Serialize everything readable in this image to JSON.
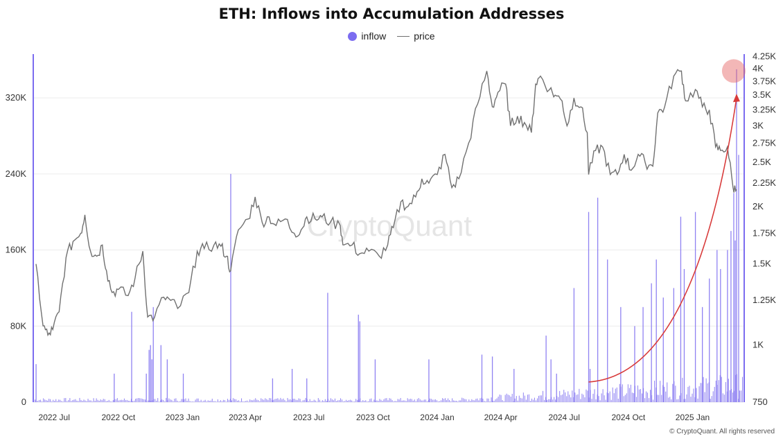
{
  "chart_data": {
    "type": "bar+line",
    "title": "ETH: Inflows into Accumulation Addresses",
    "legend": [
      {
        "name": "inflow",
        "marker": "dot",
        "color": "#7b6cf0"
      },
      {
        "name": "price",
        "marker": "line",
        "color": "#707070"
      }
    ],
    "legend_position": "top-center",
    "watermark": "CryptoQuant",
    "copyright": "© CryptoQuant. All rights reserved",
    "x_axis": {
      "ticks": [
        "2022 Jul",
        "2022 Oct",
        "2023 Jan",
        "2023 Apr",
        "2023 Jul",
        "2023 Oct",
        "2024 Jan",
        "2024 Apr",
        "2024 Jul",
        "2024 Oct",
        "2025 Jan"
      ],
      "range": [
        "2022-06-01",
        "2025-03-15"
      ]
    },
    "y_left": {
      "label": "inflow",
      "ticks": [
        "0",
        "80K",
        "160K",
        "240K",
        "320K"
      ],
      "min": 0,
      "max": 366000
    },
    "y_right": {
      "label": "price",
      "scale": "log",
      "ticks": [
        "750",
        "1K",
        "1.25K",
        "1.5K",
        "1.75K",
        "2K",
        "2.25K",
        "2.5K",
        "2.75K",
        "3K",
        "3.25K",
        "3.5K",
        "3.75K",
        "4K",
        "4.25K"
      ],
      "min": 750,
      "max": 4300
    },
    "grid": "horizontal",
    "series": [
      {
        "name": "price",
        "type": "line",
        "color": "#707070",
        "points": [
          [
            "2022-06-05",
            1500
          ],
          [
            "2022-06-15",
            1100
          ],
          [
            "2022-06-22",
            1050
          ],
          [
            "2022-06-29",
            1080
          ],
          [
            "2022-07-08",
            1180
          ],
          [
            "2022-07-18",
            1550
          ],
          [
            "2022-07-28",
            1680
          ],
          [
            "2022-08-08",
            1750
          ],
          [
            "2022-08-14",
            1920
          ],
          [
            "2022-08-22",
            1600
          ],
          [
            "2022-08-31",
            1560
          ],
          [
            "2022-09-08",
            1650
          ],
          [
            "2022-09-14",
            1450
          ],
          [
            "2022-09-22",
            1300
          ],
          [
            "2022-10-01",
            1320
          ],
          [
            "2022-10-15",
            1280
          ],
          [
            "2022-10-25",
            1400
          ],
          [
            "2022-11-05",
            1600
          ],
          [
            "2022-11-12",
            1150
          ],
          [
            "2022-11-22",
            1150
          ],
          [
            "2022-12-05",
            1270
          ],
          [
            "2022-12-15",
            1250
          ],
          [
            "2022-12-25",
            1200
          ],
          [
            "2023-01-10",
            1300
          ],
          [
            "2023-01-22",
            1600
          ],
          [
            "2023-02-01",
            1620
          ],
          [
            "2023-02-15",
            1650
          ],
          [
            "2023-02-25",
            1640
          ],
          [
            "2023-03-05",
            1560
          ],
          [
            "2023-03-11",
            1450
          ],
          [
            "2023-03-22",
            1780
          ],
          [
            "2023-04-05",
            1880
          ],
          [
            "2023-04-15",
            2100
          ],
          [
            "2023-04-25",
            1850
          ],
          [
            "2023-05-05",
            1900
          ],
          [
            "2023-05-15",
            1820
          ],
          [
            "2023-05-28",
            1880
          ],
          [
            "2023-06-10",
            1750
          ],
          [
            "2023-06-20",
            1780
          ],
          [
            "2023-06-28",
            1900
          ],
          [
            "2023-07-10",
            1880
          ],
          [
            "2023-07-20",
            1900
          ],
          [
            "2023-08-01",
            1850
          ],
          [
            "2023-08-15",
            1820
          ],
          [
            "2023-08-20",
            1650
          ],
          [
            "2023-09-01",
            1650
          ],
          [
            "2023-09-12",
            1580
          ],
          [
            "2023-09-25",
            1600
          ],
          [
            "2023-10-10",
            1560
          ],
          [
            "2023-10-22",
            1650
          ],
          [
            "2023-10-30",
            1800
          ],
          [
            "2023-11-10",
            2050
          ],
          [
            "2023-11-20",
            2000
          ],
          [
            "2023-12-01",
            2100
          ],
          [
            "2023-12-10",
            2300
          ],
          [
            "2023-12-20",
            2250
          ],
          [
            "2024-01-01",
            2350
          ],
          [
            "2024-01-12",
            2600
          ],
          [
            "2024-01-22",
            2200
          ],
          [
            "2024-02-01",
            2300
          ],
          [
            "2024-02-15",
            2750
          ],
          [
            "2024-02-28",
            3350
          ],
          [
            "2024-03-12",
            3950
          ],
          [
            "2024-03-20",
            3300
          ],
          [
            "2024-03-28",
            3550
          ],
          [
            "2024-04-08",
            3700
          ],
          [
            "2024-04-15",
            3000
          ],
          [
            "2024-04-25",
            3150
          ],
          [
            "2024-05-05",
            3050
          ],
          [
            "2024-05-15",
            2900
          ],
          [
            "2024-05-21",
            3700
          ],
          [
            "2024-05-28",
            3850
          ],
          [
            "2024-06-10",
            3600
          ],
          [
            "2024-06-18",
            3500
          ],
          [
            "2024-06-28",
            3400
          ],
          [
            "2024-07-05",
            3000
          ],
          [
            "2024-07-15",
            3450
          ],
          [
            "2024-07-25",
            3300
          ],
          [
            "2024-08-03",
            2900
          ],
          [
            "2024-08-05",
            2350
          ],
          [
            "2024-08-15",
            2650
          ],
          [
            "2024-08-25",
            2700
          ],
          [
            "2024-09-05",
            2350
          ],
          [
            "2024-09-15",
            2350
          ],
          [
            "2024-09-25",
            2600
          ],
          [
            "2024-10-05",
            2400
          ],
          [
            "2024-10-15",
            2600
          ],
          [
            "2024-10-25",
            2500
          ],
          [
            "2024-11-05",
            2450
          ],
          [
            "2024-11-12",
            3200
          ],
          [
            "2024-11-22",
            3300
          ],
          [
            "2024-12-05",
            3850
          ],
          [
            "2024-12-16",
            3950
          ],
          [
            "2024-12-22",
            3400
          ],
          [
            "2025-01-05",
            3600
          ],
          [
            "2025-01-15",
            3300
          ],
          [
            "2025-01-25",
            3250
          ],
          [
            "2025-02-03",
            2700
          ],
          [
            "2025-02-10",
            2650
          ],
          [
            "2025-02-20",
            2700
          ],
          [
            "2025-02-28",
            2200
          ],
          [
            "2025-03-05",
            2180
          ]
        ]
      },
      {
        "name": "inflow",
        "type": "bar",
        "color": "#7b6cf0",
        "baseline_level": 2500,
        "spikes": [
          [
            "2022-06-01",
            360000
          ],
          [
            "2022-06-05",
            40000
          ],
          [
            "2022-09-25",
            30000
          ],
          [
            "2022-10-20",
            95000
          ],
          [
            "2022-11-10",
            30000
          ],
          [
            "2022-11-14",
            55000
          ],
          [
            "2022-11-16",
            60000
          ],
          [
            "2022-11-18",
            45000
          ],
          [
            "2022-11-20",
            100000
          ],
          [
            "2022-12-01",
            60000
          ],
          [
            "2022-12-10",
            45000
          ],
          [
            "2023-01-02",
            30000
          ],
          [
            "2023-03-11",
            240000
          ],
          [
            "2023-05-10",
            25000
          ],
          [
            "2023-06-07",
            35000
          ],
          [
            "2023-06-28",
            25000
          ],
          [
            "2023-07-28",
            115000
          ],
          [
            "2023-09-10",
            92000
          ],
          [
            "2023-09-12",
            85000
          ],
          [
            "2023-10-04",
            45000
          ],
          [
            "2023-12-20",
            45000
          ],
          [
            "2024-03-05",
            50000
          ],
          [
            "2024-03-20",
            48000
          ],
          [
            "2024-04-20",
            35000
          ],
          [
            "2024-06-05",
            70000
          ],
          [
            "2024-06-12",
            45000
          ],
          [
            "2024-06-20",
            30000
          ],
          [
            "2024-07-15",
            120000
          ],
          [
            "2024-08-05",
            200000
          ],
          [
            "2024-08-07",
            35000
          ],
          [
            "2024-08-18",
            215000
          ],
          [
            "2024-09-01",
            150000
          ],
          [
            "2024-09-20",
            100000
          ],
          [
            "2024-10-10",
            80000
          ],
          [
            "2024-10-22",
            100000
          ],
          [
            "2024-11-03",
            125000
          ],
          [
            "2024-11-10",
            150000
          ],
          [
            "2024-11-20",
            110000
          ],
          [
            "2024-12-05",
            120000
          ],
          [
            "2024-12-15",
            195000
          ],
          [
            "2024-12-20",
            140000
          ],
          [
            "2025-01-05",
            200000
          ],
          [
            "2025-01-15",
            100000
          ],
          [
            "2025-01-25",
            130000
          ],
          [
            "2025-02-05",
            160000
          ],
          [
            "2025-02-10",
            140000
          ],
          [
            "2025-02-20",
            160000
          ],
          [
            "2025-02-25",
            180000
          ],
          [
            "2025-03-01",
            220000
          ],
          [
            "2025-03-03",
            170000
          ],
          [
            "2025-03-05",
            350000
          ],
          [
            "2025-03-08",
            260000
          ]
        ]
      }
    ],
    "annotations": [
      {
        "type": "arrow",
        "color": "#d83a3a",
        "from": [
          "2024-08-05",
          830
        ],
        "to": [
          "2025-03-05",
          3450
        ]
      },
      {
        "type": "circle-highlight",
        "color": "#e56060",
        "at": [
          "2025-03-01",
          3950
        ]
      }
    ]
  }
}
